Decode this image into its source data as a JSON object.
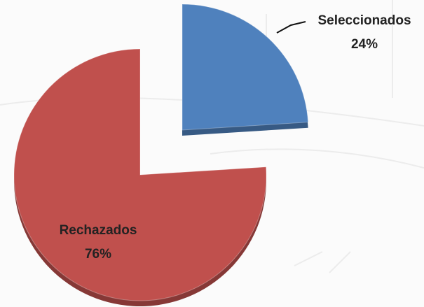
{
  "chart_data": {
    "type": "pie",
    "categories": [
      "Seleccionados",
      "Rechazados"
    ],
    "values": [
      24,
      76
    ],
    "value_labels": [
      "24%",
      "76%"
    ],
    "colors": [
      "#4f81bd",
      "#c0504d"
    ]
  }
}
